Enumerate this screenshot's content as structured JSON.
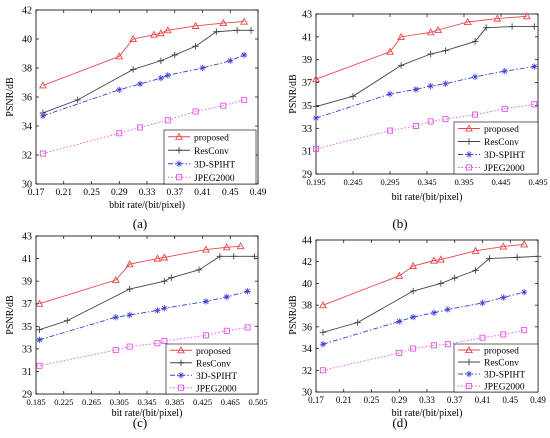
{
  "figure": {
    "panel_labels": [
      "(a)",
      "(b)",
      "(c)",
      "(d)"
    ]
  },
  "legend_items": {
    "proposed": {
      "label": "proposed",
      "color": "#e8474b",
      "marker": "triangle",
      "dash": "solid"
    },
    "resconv": {
      "label": "ResConv",
      "color": "#444444",
      "marker": "plus",
      "dash": "solid"
    },
    "spiht": {
      "label": "3D-SPIHT",
      "color": "#3c3cd6",
      "marker": "star",
      "dash": "dashdot"
    },
    "jpeg": {
      "label": "JPEG2000",
      "color": "#e454e4",
      "marker": "square",
      "dash": "dotted"
    }
  },
  "chart_data": [
    {
      "type": "line",
      "panel": "(a)",
      "xlabel": "bbit rate/(bit/pixel)",
      "ylabel": "PSNR/dB",
      "xlim": [
        0.17,
        0.49
      ],
      "ylim": [
        30,
        42
      ],
      "xticks": [
        "0.17",
        "0.21",
        "0.25",
        "0.29",
        "0.33",
        "0.37",
        "0.41",
        "0.45",
        "0.49"
      ],
      "yticks": [
        "30",
        "32",
        "34",
        "36",
        "38",
        "40",
        "42"
      ],
      "legend_position": "bottom-right",
      "series": [
        {
          "name": "proposed",
          "x": [
            0.18,
            0.29,
            0.31,
            0.34,
            0.35,
            0.36,
            0.4,
            0.44,
            0.47
          ],
          "y": [
            36.8,
            38.8,
            40.0,
            40.3,
            40.4,
            40.6,
            40.9,
            41.1,
            41.2
          ]
        },
        {
          "name": "ResConv",
          "x": [
            0.18,
            0.23,
            0.31,
            0.35,
            0.37,
            0.4,
            0.43,
            0.46,
            0.48
          ],
          "y": [
            34.9,
            35.8,
            37.9,
            38.5,
            38.9,
            39.5,
            40.5,
            40.6,
            40.6
          ]
        },
        {
          "name": "3D-SPIHT",
          "x": [
            0.18,
            0.29,
            0.32,
            0.35,
            0.36,
            0.41,
            0.45,
            0.47
          ],
          "y": [
            34.7,
            36.5,
            36.9,
            37.3,
            37.5,
            38.0,
            38.5,
            38.9
          ]
        },
        {
          "name": "JPEG2000",
          "x": [
            0.18,
            0.29,
            0.32,
            0.36,
            0.4,
            0.44,
            0.47
          ],
          "y": [
            32.1,
            33.5,
            33.9,
            34.4,
            35.0,
            35.4,
            35.8
          ]
        }
      ]
    },
    {
      "type": "line",
      "panel": "(b)",
      "xlabel": "bit rate/(bit/pixel)",
      "ylabel": "PSNR/dB",
      "xlim": [
        0.195,
        0.495
      ],
      "ylim": [
        29,
        43
      ],
      "xticks": [
        "0.195",
        "0.245",
        "0.295",
        "0.345",
        "0.395",
        "0.445",
        "0.495"
      ],
      "yticks": [
        "29",
        "31",
        "33",
        "35",
        "37",
        "39",
        "41",
        "43"
      ],
      "legend_position": "bottom-right",
      "series": [
        {
          "name": "proposed",
          "x": [
            0.195,
            0.295,
            0.31,
            0.35,
            0.36,
            0.4,
            0.44,
            0.48
          ],
          "y": [
            37.3,
            39.7,
            41.0,
            41.4,
            41.6,
            42.3,
            42.6,
            42.8
          ]
        },
        {
          "name": "ResConv",
          "x": [
            0.195,
            0.245,
            0.31,
            0.35,
            0.37,
            0.41,
            0.425,
            0.46,
            0.49
          ],
          "y": [
            34.9,
            35.8,
            38.5,
            39.5,
            39.8,
            40.6,
            41.8,
            41.9,
            41.9
          ]
        },
        {
          "name": "3D-SPIHT",
          "x": [
            0.195,
            0.295,
            0.33,
            0.35,
            0.37,
            0.41,
            0.45,
            0.49
          ],
          "y": [
            33.9,
            36.0,
            36.4,
            36.7,
            36.9,
            37.5,
            38.0,
            38.4
          ]
        },
        {
          "name": "JPEG2000",
          "x": [
            0.195,
            0.295,
            0.33,
            0.35,
            0.37,
            0.41,
            0.45,
            0.49
          ],
          "y": [
            31.2,
            32.8,
            33.2,
            33.6,
            33.8,
            34.2,
            34.7,
            35.1
          ]
        }
      ]
    },
    {
      "type": "line",
      "panel": "(c)",
      "xlabel": "bit rate/(bit/pixel)",
      "ylabel": "PSNR/dB",
      "xlim": [
        0.185,
        0.505
      ],
      "ylim": [
        29,
        43
      ],
      "xticks": [
        "0.185",
        "0.225",
        "0.265",
        "0.305",
        "0.345",
        "0.385",
        "0.425",
        "0.465",
        "0.505"
      ],
      "yticks": [
        "29",
        "31",
        "33",
        "35",
        "37",
        "39",
        "41",
        "43"
      ],
      "legend_position": "bottom-right",
      "series": [
        {
          "name": "proposed",
          "x": [
            0.19,
            0.3,
            0.32,
            0.36,
            0.37,
            0.43,
            0.46,
            0.48
          ],
          "y": [
            37.0,
            39.1,
            40.5,
            41.0,
            41.1,
            41.8,
            42.0,
            42.1
          ]
        },
        {
          "name": "ResConv",
          "x": [
            0.19,
            0.23,
            0.32,
            0.37,
            0.38,
            0.42,
            0.45,
            0.47,
            0.5
          ],
          "y": [
            34.7,
            35.5,
            38.3,
            39.0,
            39.3,
            40.0,
            41.2,
            41.2,
            41.2
          ]
        },
        {
          "name": "3D-SPIHT",
          "x": [
            0.19,
            0.3,
            0.32,
            0.36,
            0.37,
            0.43,
            0.46,
            0.49
          ],
          "y": [
            33.8,
            35.8,
            36.0,
            36.4,
            36.6,
            37.2,
            37.6,
            38.1
          ]
        },
        {
          "name": "JPEG2000",
          "x": [
            0.19,
            0.3,
            0.32,
            0.36,
            0.37,
            0.43,
            0.46,
            0.49
          ],
          "y": [
            31.5,
            32.9,
            33.2,
            33.5,
            33.7,
            34.2,
            34.6,
            34.9
          ]
        }
      ]
    },
    {
      "type": "line",
      "panel": "(d)",
      "xlabel": "bit rate/(bit/pixel)",
      "ylabel": "PSNR/dB",
      "xlim": [
        0.17,
        0.49
      ],
      "ylim": [
        30,
        44
      ],
      "xticks": [
        "0.17",
        "0.21",
        "0.25",
        "0.29",
        "0.33",
        "0.37",
        "0.41",
        "0.45",
        "0.49"
      ],
      "yticks": [
        "30",
        "32",
        "34",
        "36",
        "38",
        "40",
        "42",
        "44"
      ],
      "legend_position": "bottom-right",
      "series": [
        {
          "name": "proposed",
          "x": [
            0.18,
            0.29,
            0.31,
            0.34,
            0.35,
            0.4,
            0.44,
            0.47
          ],
          "y": [
            38.0,
            40.7,
            41.6,
            42.1,
            42.2,
            43.0,
            43.4,
            43.6
          ]
        },
        {
          "name": "ResConv",
          "x": [
            0.18,
            0.23,
            0.31,
            0.35,
            0.37,
            0.4,
            0.42,
            0.46,
            0.49
          ],
          "y": [
            35.5,
            36.4,
            39.3,
            40.0,
            40.5,
            41.2,
            42.3,
            42.4,
            42.5
          ]
        },
        {
          "name": "3D-SPIHT",
          "x": [
            0.18,
            0.29,
            0.31,
            0.34,
            0.36,
            0.41,
            0.44,
            0.47
          ],
          "y": [
            34.4,
            36.5,
            36.9,
            37.3,
            37.6,
            38.2,
            38.7,
            39.2
          ]
        },
        {
          "name": "JPEG2000",
          "x": [
            0.18,
            0.29,
            0.31,
            0.34,
            0.36,
            0.41,
            0.44,
            0.47
          ],
          "y": [
            32.0,
            33.6,
            34.0,
            34.3,
            34.4,
            35.0,
            35.3,
            35.7
          ]
        }
      ]
    }
  ]
}
